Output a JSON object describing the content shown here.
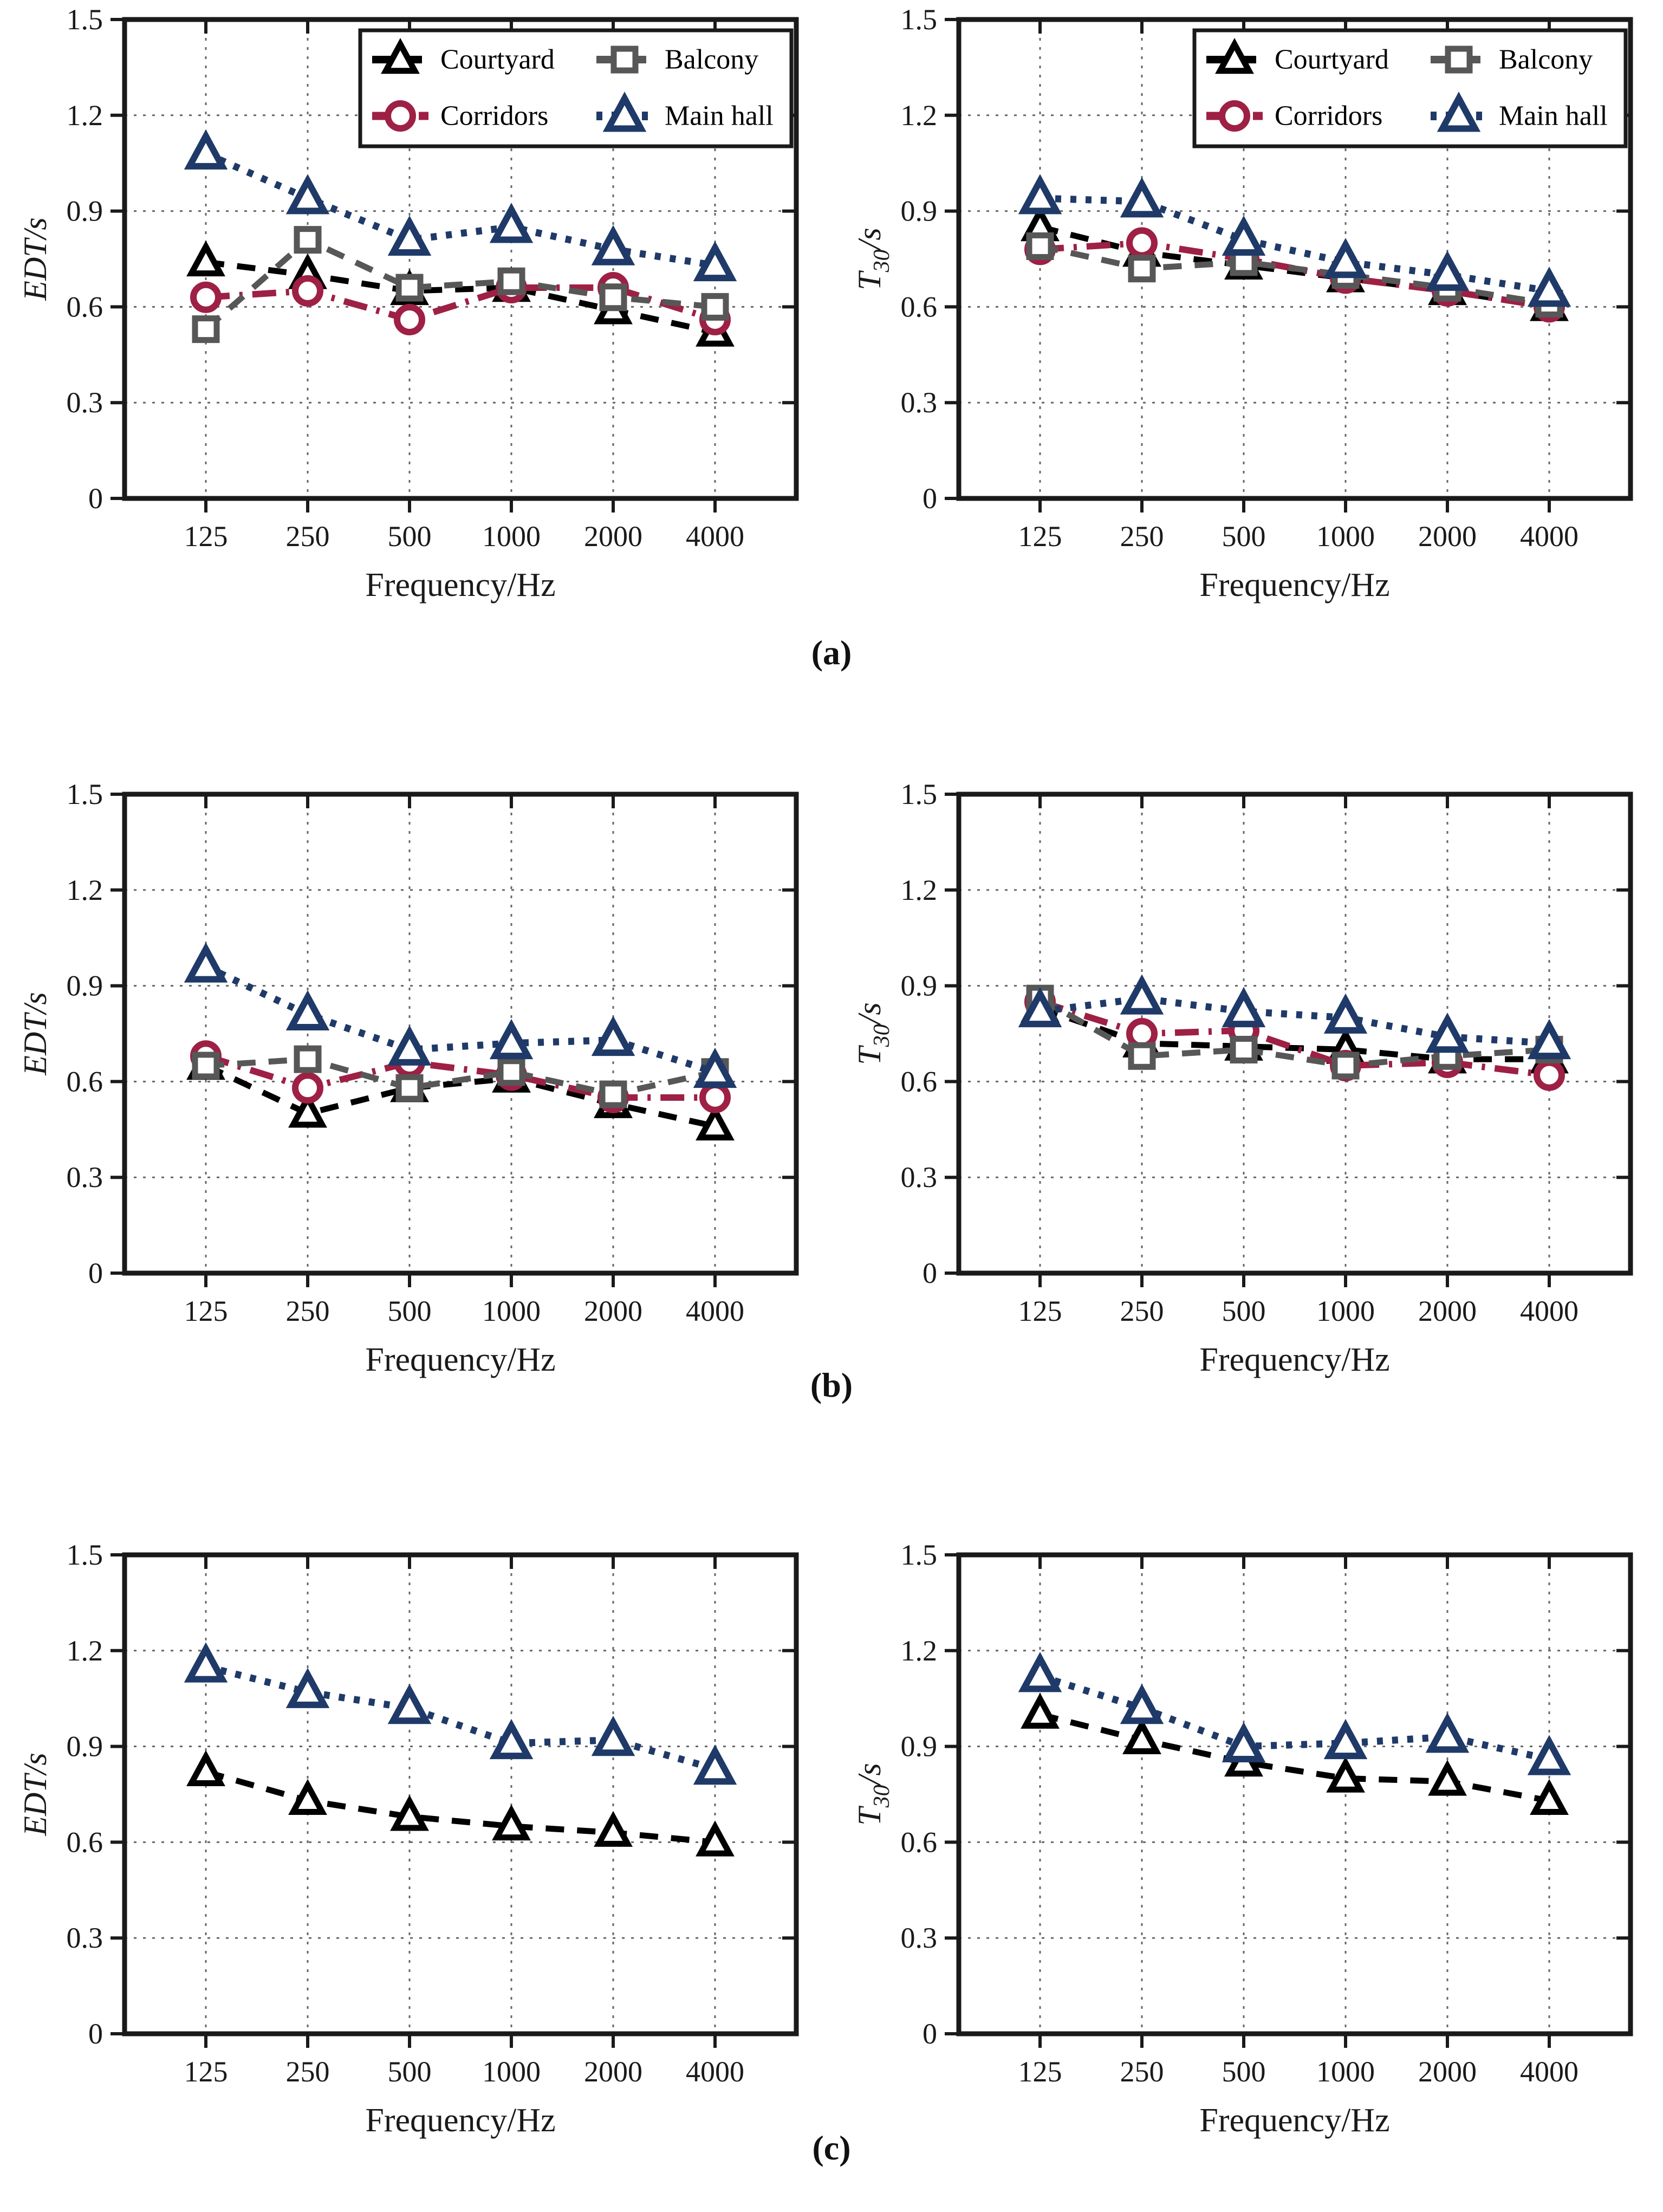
{
  "figure": {
    "panel_labels": [
      "(a)",
      "(b)",
      "(c)"
    ],
    "xlabel": "Frequency/Hz",
    "categories": [
      "125",
      "250",
      "500",
      "1000",
      "2000",
      "4000"
    ],
    "ytick_labels": [
      "0",
      "0.3",
      "0.6",
      "0.9",
      "1.2",
      "1.5"
    ],
    "yticks": [
      0,
      0.3,
      0.6,
      0.9,
      1.2,
      1.5
    ],
    "ylim": [
      0,
      1.5
    ],
    "legend_grid": [
      [
        "Courtyard",
        "Balcony"
      ],
      [
        "Corridors",
        "Main hall"
      ]
    ],
    "colors": {
      "courtyard": "#000000",
      "balcony": "#575757",
      "corridors": "#9e2044",
      "main_hall": "#1f3a68",
      "axis": "#1a1a1a",
      "grid": "#666666"
    }
  },
  "series_styles": {
    "Courtyard": {
      "color": "#000000",
      "marker": "triangle-up",
      "marker_size": 46,
      "dash": "34 24",
      "line_width": 11,
      "marker_stroke": 11
    },
    "Balcony": {
      "color": "#575757",
      "marker": "square",
      "marker_size": 40,
      "dash": "34 24",
      "line_width": 11,
      "marker_stroke": 11
    },
    "Corridors": {
      "color": "#9e2044",
      "marker": "circle",
      "marker_size": 46,
      "dash": "44 18 6 18",
      "line_width": 12,
      "marker_stroke": 12
    },
    "Main hall": {
      "color": "#1f3a68",
      "marker": "triangle-up",
      "marker_size": 52,
      "dash": "11 17",
      "line_width": 13,
      "marker_stroke": 12
    }
  },
  "chart_data": [
    {
      "panel": "a",
      "side": "left",
      "type": "line",
      "xlabel": "Frequency/Hz",
      "ylabel": "EDT/s",
      "categories": [
        125,
        250,
        500,
        1000,
        2000,
        4000
      ],
      "ylim": [
        0,
        1.5
      ],
      "yticks": [
        0,
        0.3,
        0.6,
        0.9,
        1.2,
        1.5
      ],
      "grid": true,
      "legend": true,
      "legend_position": "upper right",
      "series": [
        {
          "name": "Courtyard",
          "values": [
            0.74,
            0.7,
            0.65,
            0.66,
            0.59,
            0.52
          ]
        },
        {
          "name": "Corridors",
          "values": [
            0.63,
            0.65,
            0.56,
            0.66,
            0.66,
            0.56
          ]
        },
        {
          "name": "Balcony",
          "values": [
            0.53,
            0.81,
            0.66,
            0.68,
            0.63,
            0.6
          ]
        },
        {
          "name": "Main hall",
          "values": [
            1.08,
            0.94,
            0.81,
            0.85,
            0.78,
            0.73
          ]
        }
      ]
    },
    {
      "panel": "a",
      "side": "right",
      "type": "line",
      "xlabel": "Frequency/Hz",
      "ylabel": "T30/s",
      "categories": [
        125,
        250,
        500,
        1000,
        2000,
        4000
      ],
      "ylim": [
        0,
        1.5
      ],
      "yticks": [
        0,
        0.3,
        0.6,
        0.9,
        1.2,
        1.5
      ],
      "grid": true,
      "legend": true,
      "legend_position": "upper right",
      "series": [
        {
          "name": "Courtyard",
          "values": [
            0.85,
            0.77,
            0.73,
            0.69,
            0.65,
            0.6
          ]
        },
        {
          "name": "Corridors",
          "values": [
            0.78,
            0.8,
            0.75,
            0.69,
            0.65,
            0.6
          ]
        },
        {
          "name": "Balcony",
          "values": [
            0.79,
            0.72,
            0.74,
            0.7,
            0.66,
            0.61
          ]
        },
        {
          "name": "Main hall",
          "values": [
            0.94,
            0.93,
            0.81,
            0.74,
            0.7,
            0.65
          ]
        }
      ]
    },
    {
      "panel": "b",
      "side": "left",
      "type": "line",
      "xlabel": "Frequency/Hz",
      "ylabel": "EDT/s",
      "categories": [
        125,
        250,
        500,
        1000,
        2000,
        4000
      ],
      "ylim": [
        0,
        1.5
      ],
      "yticks": [
        0,
        0.3,
        0.6,
        0.9,
        1.2,
        1.5
      ],
      "grid": true,
      "legend": false,
      "series": [
        {
          "name": "Courtyard",
          "values": [
            0.65,
            0.5,
            0.58,
            0.61,
            0.53,
            0.46
          ]
        },
        {
          "name": "Corridors",
          "values": [
            0.68,
            0.58,
            0.66,
            0.62,
            0.55,
            0.55
          ]
        },
        {
          "name": "Balcony",
          "values": [
            0.65,
            0.67,
            0.58,
            0.63,
            0.56,
            0.63
          ]
        },
        {
          "name": "Main hall",
          "values": [
            0.96,
            0.81,
            0.7,
            0.72,
            0.73,
            0.63
          ]
        }
      ]
    },
    {
      "panel": "b",
      "side": "right",
      "type": "line",
      "xlabel": "Frequency/Hz",
      "ylabel": "T30/s",
      "categories": [
        125,
        250,
        500,
        1000,
        2000,
        4000
      ],
      "ylim": [
        0,
        1.5
      ],
      "yticks": [
        0,
        0.3,
        0.6,
        0.9,
        1.2,
        1.5
      ],
      "grid": true,
      "legend": false,
      "series": [
        {
          "name": "Courtyard",
          "values": [
            0.83,
            0.72,
            0.71,
            0.7,
            0.67,
            0.67
          ]
        },
        {
          "name": "Corridors",
          "values": [
            0.85,
            0.75,
            0.76,
            0.65,
            0.66,
            0.62
          ]
        },
        {
          "name": "Balcony",
          "values": [
            0.86,
            0.68,
            0.7,
            0.65,
            0.68,
            0.7
          ]
        },
        {
          "name": "Main hall",
          "values": [
            0.82,
            0.86,
            0.82,
            0.8,
            0.74,
            0.72
          ]
        }
      ]
    },
    {
      "panel": "c",
      "side": "left",
      "type": "line",
      "xlabel": "Frequency/Hz",
      "ylabel": "EDT/s",
      "categories": [
        125,
        250,
        500,
        1000,
        2000,
        4000
      ],
      "ylim": [
        0,
        1.5
      ],
      "yticks": [
        0,
        0.3,
        0.6,
        0.9,
        1.2,
        1.5
      ],
      "grid": true,
      "legend": false,
      "series": [
        {
          "name": "Courtyard",
          "values": [
            0.82,
            0.73,
            0.68,
            0.65,
            0.63,
            0.6
          ]
        },
        {
          "name": "Main hall",
          "values": [
            1.15,
            1.07,
            1.02,
            0.91,
            0.92,
            0.83
          ]
        }
      ]
    },
    {
      "panel": "c",
      "side": "right",
      "type": "line",
      "xlabel": "Frequency/Hz",
      "ylabel": "T30/s",
      "categories": [
        125,
        250,
        500,
        1000,
        2000,
        4000
      ],
      "ylim": [
        0,
        1.5
      ],
      "yticks": [
        0,
        0.3,
        0.6,
        0.9,
        1.2,
        1.5
      ],
      "grid": true,
      "legend": false,
      "series": [
        {
          "name": "Courtyard",
          "values": [
            1.0,
            0.92,
            0.85,
            0.8,
            0.79,
            0.73
          ]
        },
        {
          "name": "Main hall",
          "values": [
            1.12,
            1.02,
            0.9,
            0.91,
            0.93,
            0.86
          ]
        }
      ]
    }
  ]
}
